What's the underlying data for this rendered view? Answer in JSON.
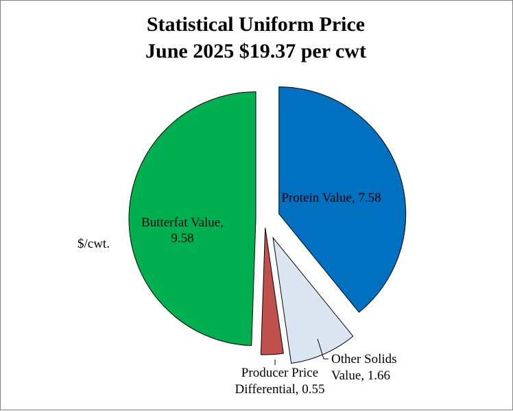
{
  "chart_data": {
    "type": "pie",
    "title": "Statistical Uniform Price",
    "subtitle": "June 2025 $19.37 per cwt",
    "unit_label": "$/cwt.",
    "slices": [
      {
        "name": "Protein Value",
        "value": 7.58,
        "color": "#0070C0",
        "label_lines": [
          "Protein Value,  7.58"
        ]
      },
      {
        "name": "Other Solids Value",
        "value": 1.66,
        "color": "#DCE6F2",
        "label_lines": [
          "Other Solids",
          "Value,  1.66"
        ]
      },
      {
        "name": "Producer Price Differential",
        "value": 0.55,
        "color": "#C0504D",
        "label_lines": [
          "Producer Price",
          "Differential,  0.55"
        ]
      },
      {
        "name": "Butterfat Value",
        "value": 9.58,
        "color": "#00B050",
        "label_lines": [
          "Butterfat Value,",
          "9.58"
        ]
      }
    ]
  }
}
